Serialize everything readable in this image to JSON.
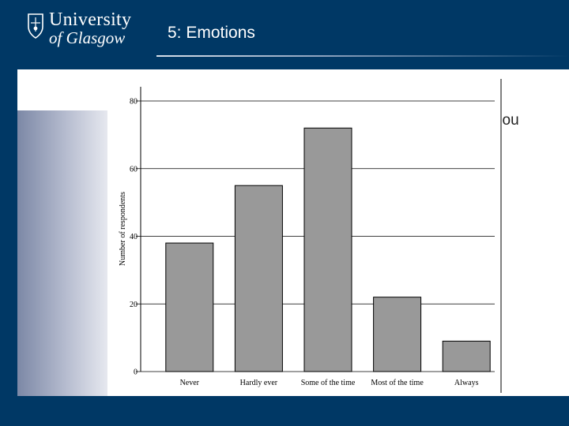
{
  "header": {
    "university_line1": "University",
    "university_line2": "of Glasgow",
    "slide_title": "5: Emotions"
  },
  "background_text": "you",
  "logo_icon": "crest-icon",
  "colors": {
    "brand_navy": "#003865",
    "bar_fill": "#999999"
  },
  "chart_data": {
    "type": "bar",
    "categories": [
      "Never",
      "Hardly ever",
      "Some of the time",
      "Most of the time",
      "Always"
    ],
    "values": [
      38,
      55,
      72,
      22,
      9
    ],
    "title": "",
    "xlabel": "",
    "ylabel": "Number of respondents",
    "ylim": [
      0,
      80
    ],
    "yticks": [
      0,
      20,
      40,
      60,
      80
    ],
    "grid": true
  }
}
